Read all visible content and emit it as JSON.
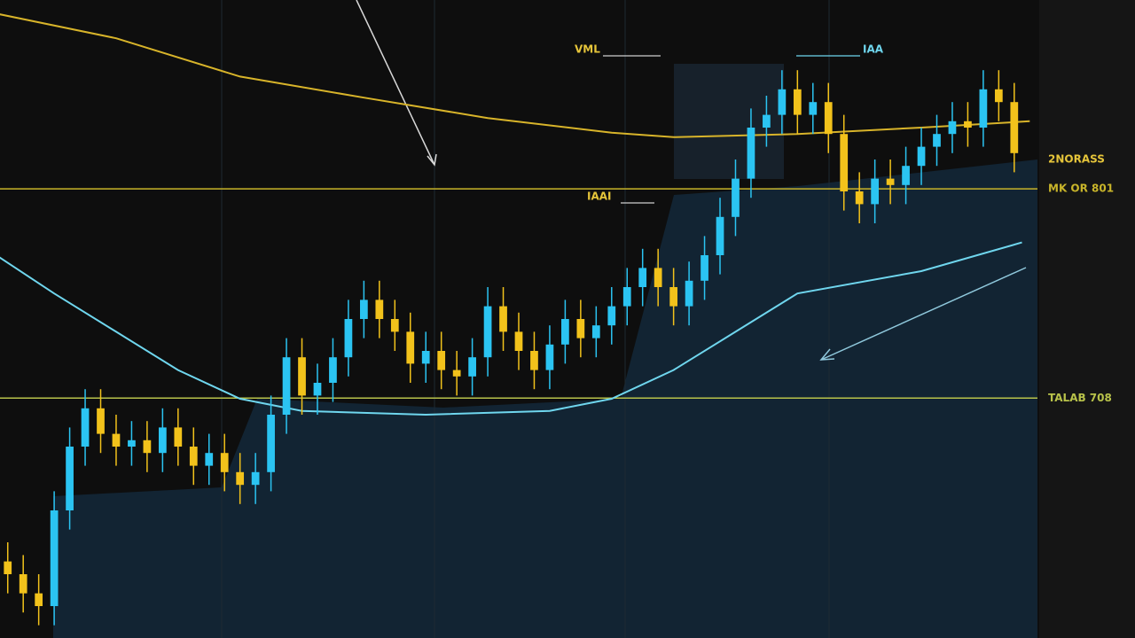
{
  "chart_data": {
    "type": "candlestick",
    "x": [
      1,
      2,
      3,
      4,
      5,
      6,
      7,
      8,
      9,
      10,
      11,
      12,
      13,
      14,
      15,
      16,
      17,
      18,
      19,
      20,
      21,
      22,
      23,
      24,
      25,
      26,
      27,
      28,
      29,
      30,
      31,
      32,
      33,
      34,
      35,
      36,
      37,
      38,
      39,
      40,
      41,
      42,
      43,
      44,
      45,
      46,
      47,
      48,
      49,
      50,
      51,
      52,
      53,
      54,
      55,
      56,
      57,
      58,
      59,
      60,
      61,
      62,
      63,
      64,
      65,
      66
    ],
    "open": [
      12,
      10,
      7,
      5,
      20,
      30,
      36,
      32,
      30,
      31,
      29,
      33,
      30,
      27,
      29,
      26,
      24,
      26,
      35,
      44,
      38,
      40,
      44,
      50,
      53,
      50,
      48,
      43,
      45,
      42,
      41,
      44,
      52,
      48,
      45,
      42,
      46,
      50,
      47,
      49,
      52,
      55,
      58,
      55,
      52,
      56,
      60,
      66,
      72,
      80,
      82,
      86,
      82,
      84,
      79,
      70,
      68,
      72,
      71,
      74,
      77,
      79,
      81,
      80,
      86,
      84
    ],
    "high": [
      15,
      13,
      10,
      23,
      33,
      39,
      39,
      35,
      34,
      34,
      36,
      36,
      33,
      32,
      32,
      29,
      29,
      38,
      47,
      47,
      43,
      47,
      53,
      56,
      56,
      53,
      51,
      48,
      48,
      45,
      47,
      55,
      55,
      51,
      48,
      49,
      53,
      53,
      52,
      55,
      58,
      61,
      61,
      58,
      59,
      63,
      69,
      75,
      83,
      85,
      89,
      89,
      87,
      87,
      82,
      73,
      75,
      75,
      77,
      80,
      82,
      84,
      84,
      89,
      89,
      87
    ],
    "low": [
      7,
      4,
      2,
      2,
      17,
      27,
      29,
      27,
      27,
      26,
      26,
      27,
      24,
      24,
      23,
      21,
      21,
      23,
      32,
      35,
      35,
      37,
      41,
      47,
      47,
      45,
      40,
      40,
      39,
      38,
      38,
      41,
      45,
      42,
      39,
      39,
      43,
      44,
      44,
      46,
      49,
      52,
      52,
      49,
      49,
      53,
      57,
      63,
      69,
      77,
      79,
      79,
      79,
      76,
      67,
      65,
      65,
      68,
      68,
      71,
      74,
      76,
      77,
      77,
      81,
      73
    ],
    "close": [
      10,
      7,
      5,
      20,
      30,
      36,
      32,
      30,
      31,
      29,
      33,
      30,
      27,
      29,
      26,
      24,
      26,
      35,
      44,
      38,
      40,
      44,
      50,
      53,
      50,
      48,
      43,
      45,
      42,
      41,
      44,
      52,
      48,
      45,
      42,
      46,
      50,
      47,
      49,
      52,
      55,
      58,
      55,
      52,
      56,
      60,
      66,
      72,
      80,
      82,
      86,
      82,
      84,
      79,
      70,
      68,
      72,
      71,
      74,
      77,
      79,
      81,
      80,
      86,
      84,
      76
    ],
    "up_color": "#2bc4f2",
    "down_color": "#f2c21b",
    "xlim": [
      0.5,
      67.5
    ],
    "ylim": [
      0,
      100
    ],
    "lines": [
      {
        "color": "#d8b42a",
        "x": [
          0,
          8,
          16,
          24,
          32,
          40,
          44,
          52,
          60,
          67
        ],
        "values": [
          98,
          94,
          88,
          84.7,
          81.5,
          79.2,
          78.5,
          79,
          80,
          81
        ]
      },
      {
        "color": "#6fd6ee",
        "x": [
          0,
          4,
          8,
          12,
          16,
          20,
          28,
          36,
          40,
          44,
          48,
          52,
          60,
          66.5
        ],
        "values": [
          60.4,
          54,
          48,
          42,
          37.5,
          35.6,
          35,
          35.6,
          37.5,
          42,
          48,
          54,
          57.5,
          62
        ]
      }
    ],
    "levels": [
      {
        "value": 75,
        "label": "2NORASS",
        "color": "#e6c53a",
        "line": false
      },
      {
        "value": 70.4,
        "label": "MK OR 801",
        "color": "#c9b52a",
        "line": true
      },
      {
        "value": 37.6,
        "label": "TALAB 708",
        "color": "#b8c24a",
        "line": true
      }
    ],
    "annotations": [
      "VML",
      "IAA",
      "IAAI"
    ]
  }
}
